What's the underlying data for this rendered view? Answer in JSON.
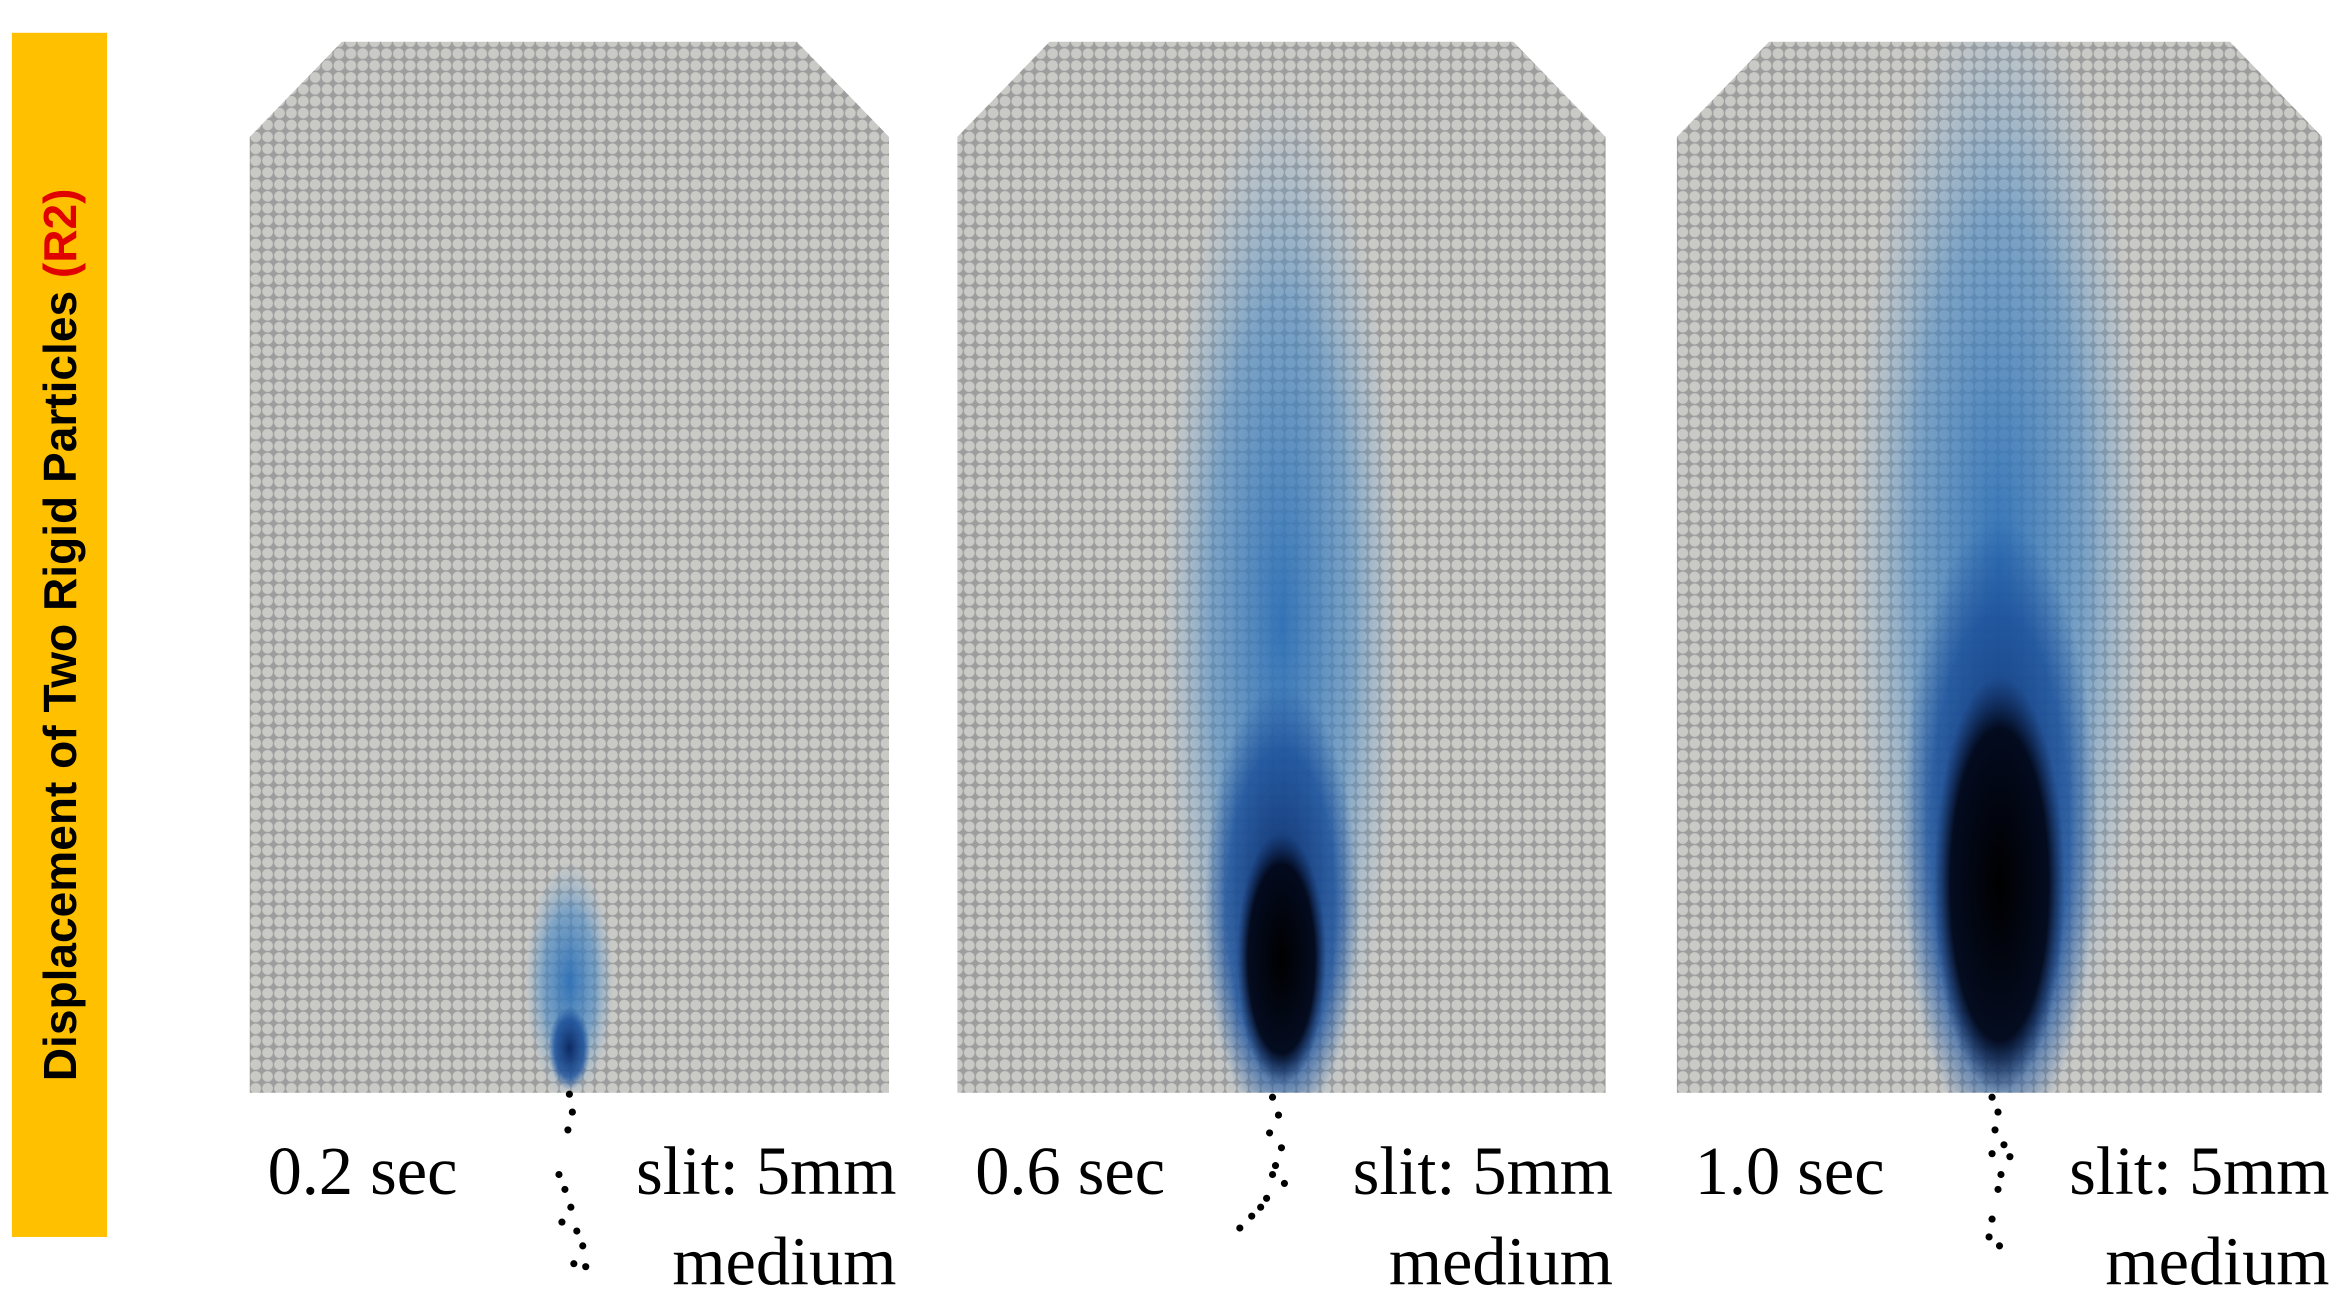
{
  "side_label": {
    "text": "Displacement of Two Rigid Particles",
    "tag": "(R2)"
  },
  "panels": [
    {
      "time": "0.2 sec",
      "slit": "slit: 5mm",
      "size": "medium"
    },
    {
      "time": "0.6 sec",
      "slit": "slit: 5mm",
      "size": "medium"
    },
    {
      "time": "1.0 sec",
      "slit": "slit: 5mm",
      "size": "medium"
    }
  ]
}
